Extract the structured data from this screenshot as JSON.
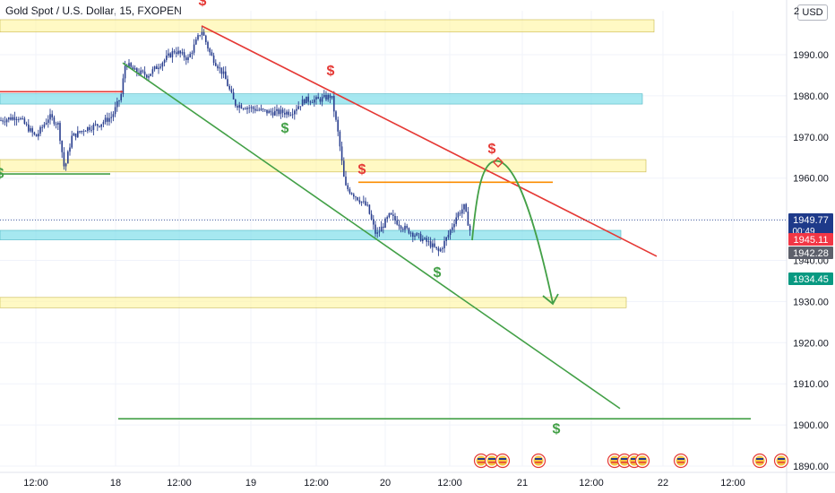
{
  "header": {
    "title": "Gold Spot / U.S. Dollar, 15, FXOPEN",
    "currency": "USD"
  },
  "colors": {
    "up": "#26a69a",
    "down": "#1e3a8a",
    "bar": "#2a3f8f",
    "yellow_zone": "#fff59d",
    "blue_zone": "#80deea",
    "red_line": "#e53935",
    "green_line": "#43a047",
    "orange_line": "#fb8c00",
    "label_blue": "#1e3a8a",
    "label_red": "#f23645",
    "label_gray": "#5d606b",
    "label_teal": "#089981"
  },
  "chart_data": {
    "type": "candlestick",
    "y_axis": {
      "min": 1888,
      "max": 2002,
      "ticks": [
        1890,
        1900,
        1910,
        1920,
        1930,
        1940,
        1950,
        1960,
        1970,
        1980,
        1990
      ]
    },
    "x_axis": {
      "labels": [
        "12:00",
        "18",
        "12:00",
        "19",
        "12:00",
        "20",
        "12:00",
        "21",
        "12:00",
        "22",
        "12:00"
      ]
    },
    "price_labels": [
      {
        "value": "1949.77",
        "sub": "00:49",
        "color": "label_blue",
        "price": 1949.77
      },
      {
        "value": "1945.11",
        "color": "label_red",
        "price": 1945.11
      },
      {
        "value": "1942.28",
        "color": "label_gray",
        "price": 1942.28
      },
      {
        "value": "1934.45",
        "color": "label_teal",
        "price": 1934.45
      }
    ],
    "zones": [
      {
        "kind": "yellow",
        "from": 1995.5,
        "to": 1998.5
      },
      {
        "kind": "blue",
        "from": 1978,
        "to": 1980.5
      },
      {
        "kind": "yellow",
        "from": 1961.5,
        "to": 1964.5
      },
      {
        "kind": "blue",
        "from": 1945,
        "to": 1947.3
      },
      {
        "kind": "yellow",
        "from": 1928.5,
        "to": 1931
      }
    ],
    "dollar_marks": [
      {
        "color": "red",
        "price": 2002
      },
      {
        "color": "red",
        "price": 1985
      },
      {
        "color": "red",
        "price": 1966
      },
      {
        "color": "red",
        "price": 1961
      },
      {
        "color": "green",
        "price": 1971
      },
      {
        "color": "green",
        "price": 1960
      },
      {
        "color": "green",
        "price": 1936
      },
      {
        "color": "green",
        "price": 1898
      }
    ],
    "dollar_symbol": "$",
    "trend_lines": [
      {
        "color": "red",
        "from": [
          0,
          1981
        ],
        "to": [
          137,
          1981
        ]
      },
      {
        "color": "red",
        "from": [
          225,
          1997
        ],
        "to": [
          733,
          1941
        ]
      },
      {
        "color": "green",
        "from": [
          137,
          1988
        ],
        "to": [
          692,
          1904
        ]
      },
      {
        "color": "green",
        "from": [
          0,
          1961
        ],
        "to": [
          123,
          1961
        ]
      },
      {
        "color": "green",
        "from": [
          132,
          1901.5
        ],
        "to": [
          838,
          1901.5
        ]
      },
      {
        "color": "orange",
        "from": [
          400,
          1959
        ],
        "to": [
          617,
          1959
        ]
      }
    ]
  }
}
